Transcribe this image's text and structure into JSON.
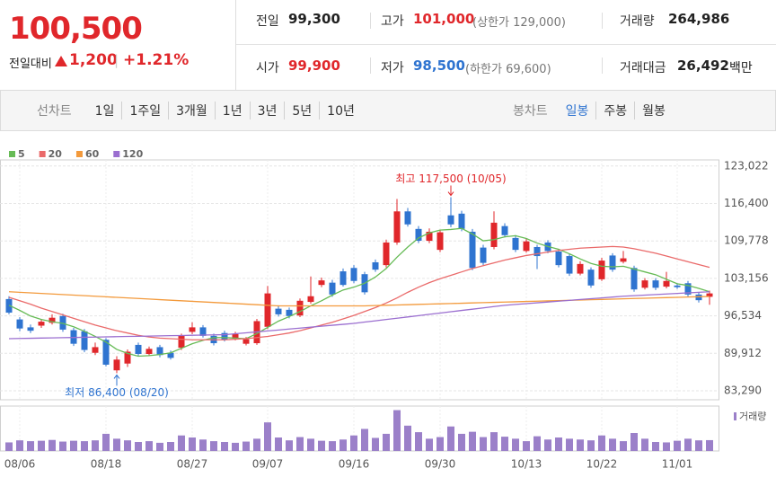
{
  "header": {
    "price": "100,500",
    "change_label": "전일대비",
    "change": "1,200",
    "change_rate": "+1.21%",
    "stats": [
      {
        "label": "전일",
        "value": "99,300"
      },
      {
        "label": "고가",
        "value": "101,000",
        "note": "(상한가 129,000)"
      },
      {
        "label": "거래량",
        "value": "264,986"
      },
      {
        "label": "시가",
        "value": "99,900"
      },
      {
        "label": "저가",
        "value": "98,500",
        "note": "(하한가 69,600)"
      },
      {
        "label": "거래대금",
        "value": "26,492",
        "unit": "백만"
      }
    ]
  },
  "tabs": {
    "line_label": "선차트",
    "line_periods": [
      "1일",
      "1주일",
      "3개월",
      "1년",
      "3년",
      "5년",
      "10년"
    ],
    "candle_label": "봉차트",
    "candle_periods": [
      "일봉",
      "주봉",
      "월봉"
    ],
    "selected_candle_period": 0
  },
  "chart_data": {
    "type": "candlestick",
    "categories": [
      null,
      "08/06",
      null,
      null,
      null,
      null,
      null,
      null,
      null,
      "08/18",
      null,
      null,
      null,
      null,
      null,
      null,
      null,
      "08/27",
      null,
      null,
      null,
      null,
      null,
      null,
      "09/07",
      null,
      null,
      null,
      null,
      null,
      null,
      null,
      "09/16",
      null,
      null,
      null,
      null,
      null,
      null,
      null,
      "09/30",
      null,
      null,
      null,
      null,
      null,
      null,
      null,
      "10/13",
      null,
      null,
      null,
      null,
      null,
      null,
      "10/22",
      null,
      null,
      null,
      null,
      null,
      null,
      "11/01",
      null,
      null,
      null
    ],
    "open": [
      99500,
      95900,
      94500,
      94800,
      95300,
      96500,
      94000,
      93800,
      90000,
      92300,
      86900,
      88100,
      91400,
      89800,
      91000,
      90000,
      90900,
      93700,
      94500,
      93000,
      93500,
      92500,
      91600,
      91700,
      94600,
      97800,
      97600,
      96600,
      99000,
      102000,
      102400,
      104400,
      105000,
      103900,
      106000,
      105500,
      109500,
      115000,
      111900,
      109800,
      108200,
      114300,
      114600,
      111400,
      108600,
      108700,
      112400,
      110300,
      108000,
      108700,
      109500,
      107900,
      107100,
      104000,
      104700,
      103000,
      107200,
      106100,
      105000,
      101500,
      102800,
      101700,
      101900,
      102300,
      100300,
      99900
    ],
    "high": [
      100000,
      96300,
      95000,
      96000,
      96800,
      96900,
      94400,
      94200,
      91800,
      92600,
      89400,
      90600,
      91800,
      91100,
      91400,
      90400,
      93400,
      95400,
      94900,
      93400,
      93900,
      93700,
      92800,
      96000,
      101800,
      98400,
      98000,
      99600,
      103500,
      103300,
      102900,
      104900,
      105500,
      104300,
      106500,
      110000,
      117200,
      115600,
      112400,
      112000,
      111800,
      117500,
      115100,
      111900,
      109100,
      115000,
      112900,
      110800,
      110200,
      109100,
      109900,
      108300,
      107500,
      106200,
      105100,
      106800,
      107600,
      108000,
      105400,
      103200,
      103200,
      104300,
      102300,
      102700,
      100700,
      101000
    ],
    "low": [
      96800,
      93800,
      93500,
      94400,
      95000,
      93700,
      91200,
      90100,
      89600,
      87600,
      86400,
      87500,
      89400,
      89500,
      89200,
      88800,
      90500,
      93300,
      92700,
      91300,
      92000,
      92200,
      91300,
      91400,
      94200,
      96400,
      96100,
      96300,
      98700,
      101600,
      99900,
      101700,
      102300,
      100300,
      104300,
      105100,
      109100,
      112300,
      109400,
      109400,
      107800,
      112200,
      111500,
      104600,
      105500,
      108300,
      110400,
      107800,
      107700,
      104800,
      107600,
      105100,
      103600,
      103700,
      101500,
      102700,
      104300,
      105800,
      100800,
      101200,
      101100,
      101400,
      101300,
      99900,
      98900,
      98500
    ],
    "close": [
      97100,
      94300,
      93900,
      95500,
      96200,
      94100,
      91600,
      90500,
      91000,
      87900,
      88800,
      90200,
      89800,
      90700,
      89600,
      89100,
      93000,
      94500,
      93000,
      91700,
      92300,
      93300,
      92400,
      95600,
      100500,
      96800,
      96500,
      99200,
      100000,
      102800,
      100300,
      102000,
      102700,
      100700,
      104700,
      109500,
      115000,
      112700,
      109800,
      111400,
      111300,
      112700,
      111900,
      105000,
      105900,
      113000,
      110800,
      108200,
      109700,
      107100,
      108000,
      105500,
      104000,
      105700,
      101900,
      106300,
      104700,
      106700,
      101200,
      102800,
      101500,
      102700,
      101600,
      100300,
      99300,
      100500
    ],
    "volume": [
      210000,
      260000,
      240000,
      250000,
      270000,
      230000,
      250000,
      240000,
      260000,
      420000,
      300000,
      260000,
      220000,
      240000,
      200000,
      220000,
      380000,
      330000,
      280000,
      240000,
      220000,
      200000,
      230000,
      300000,
      700000,
      330000,
      260000,
      340000,
      300000,
      250000,
      240000,
      280000,
      380000,
      540000,
      320000,
      420000,
      1000000,
      620000,
      460000,
      300000,
      340000,
      600000,
      420000,
      470000,
      340000,
      460000,
      350000,
      300000,
      240000,
      360000,
      280000,
      330000,
      300000,
      280000,
      260000,
      380000,
      300000,
      240000,
      440000,
      300000,
      220000,
      210000,
      250000,
      300000,
      260000,
      264986
    ],
    "volume_name": "거래량",
    "volume_color": "#9b80c9",
    "volume_ylim": [
      0,
      1100000
    ],
    "up_color": "#e0272b",
    "down_color": "#2f74d0",
    "series": [
      {
        "name": "5",
        "color": "#66bb55",
        "values": [
          98400,
          97500,
          96500,
          95900,
          95500,
          95200,
          94600,
          93800,
          92900,
          91900,
          90600,
          89900,
          89400,
          89500,
          89700,
          90000,
          90800,
          91600,
          92200,
          92700,
          92700,
          92600,
          92500,
          93400,
          94500,
          95600,
          96400,
          97300,
          98300,
          99200,
          100200,
          101100,
          101600,
          102300,
          103400,
          104900,
          106900,
          108700,
          110300,
          111200,
          111700,
          111800,
          112000,
          111000,
          109800,
          110000,
          110500,
          110700,
          110200,
          109400,
          108800,
          108300,
          107500,
          106600,
          105800,
          105300,
          105200,
          105300,
          104800,
          104300,
          103800,
          103000,
          102200,
          101900,
          101400,
          100800
        ]
      },
      {
        "name": "20",
        "color": "#ea6a6a",
        "values": [
          99800,
          99200,
          98600,
          97900,
          97300,
          96700,
          96100,
          95500,
          94900,
          94400,
          93900,
          93500,
          93100,
          92800,
          92600,
          92500,
          92400,
          92300,
          92300,
          92300,
          92300,
          92400,
          92500,
          92700,
          92900,
          93200,
          93500,
          93900,
          94400,
          94900,
          95400,
          96000,
          96600,
          97300,
          98000,
          98800,
          99700,
          100700,
          101600,
          102400,
          103100,
          103700,
          104300,
          104900,
          105400,
          105900,
          106400,
          106800,
          107200,
          107500,
          107800,
          108100,
          108300,
          108500,
          108600,
          108700,
          108800,
          108700,
          108400,
          108000,
          107600,
          107100,
          106600,
          106100,
          105600,
          105100
        ]
      },
      {
        "name": "60",
        "color": "#f39a3c",
        "values": [
          100800,
          100700,
          100600,
          100500,
          100400,
          100300,
          100200,
          100100,
          100000,
          99900,
          99800,
          99700,
          99600,
          99500,
          99400,
          99300,
          99200,
          99100,
          99000,
          98900,
          98800,
          98700,
          98600,
          98500,
          98400,
          98300,
          98300,
          98300,
          98300,
          98300,
          98300,
          98300,
          98300,
          98300,
          98350,
          98400,
          98450,
          98500,
          98560,
          98610,
          98660,
          98710,
          98760,
          98820,
          98870,
          98920,
          98970,
          99020,
          99080,
          99130,
          99180,
          99230,
          99280,
          99340,
          99390,
          99440,
          99490,
          99540,
          99600,
          99650,
          99700,
          99750,
          99800,
          99860,
          99910,
          99960
        ]
      },
      {
        "name": "120",
        "color": "#9b6fd0",
        "values": [
          92500,
          92540,
          92570,
          92610,
          92640,
          92680,
          92710,
          92750,
          92780,
          92820,
          92850,
          92890,
          92920,
          92960,
          92990,
          93030,
          93060,
          93100,
          93130,
          93170,
          93200,
          93370,
          93530,
          93700,
          93870,
          94030,
          94200,
          94370,
          94530,
          94700,
          94870,
          95030,
          95200,
          95430,
          95660,
          95890,
          96110,
          96340,
          96570,
          96800,
          97030,
          97260,
          97490,
          97710,
          97940,
          98170,
          98400,
          98550,
          98690,
          98840,
          98980,
          99130,
          99270,
          99420,
          99560,
          99710,
          99850,
          100000,
          100100,
          100200,
          100300,
          100400,
          100500,
          100600,
          100700,
          100800
        ]
      }
    ],
    "ylim": [
      81700,
      124100
    ],
    "yticks": [
      {
        "value": 83290,
        "label": "83,290"
      },
      {
        "value": 89912,
        "label": "89,912"
      },
      {
        "value": 96534,
        "label": "96,534"
      },
      {
        "value": 103156,
        "label": "103,156"
      },
      {
        "value": 109778,
        "label": "109,778"
      },
      {
        "value": 116400,
        "label": "116,400"
      },
      {
        "value": 123022,
        "label": "123,022"
      }
    ],
    "grid": true,
    "annotations": {
      "high": "최고 117,500 (10/05)",
      "low": "최저 86,400 (08/20)"
    }
  }
}
